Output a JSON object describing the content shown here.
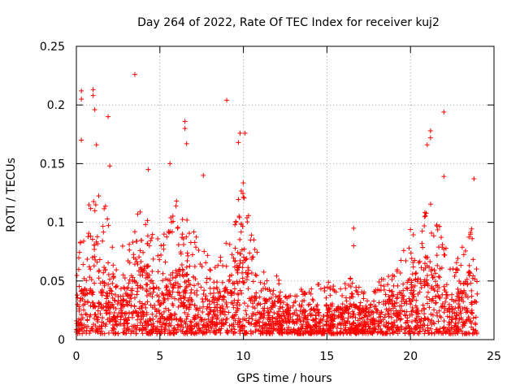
{
  "chart_data": {
    "type": "scatter",
    "title": "Day 264 of 2022, Rate Of TEC Index for receiver kuj2",
    "xlabel": "GPS time / hours",
    "ylabel": "ROTI / TECUs",
    "xlim": [
      0,
      25
    ],
    "ylim": [
      0,
      0.25
    ],
    "x_ticks": [
      "0",
      "5",
      "10",
      "15",
      "20",
      "25"
    ],
    "y_ticks": [
      "0",
      "0.05",
      "0.1",
      "0.15",
      "0.2",
      "0.25"
    ],
    "grid": true,
    "marker": "+",
    "series_color": "#ff0000",
    "x_range_data": [
      0,
      24
    ],
    "envelope": {
      "hours": [
        0,
        0.5,
        1,
        1.5,
        2,
        2.5,
        3,
        3.5,
        4,
        4.5,
        5,
        5.5,
        6,
        6.5,
        7,
        7.5,
        8,
        8.5,
        9,
        9.5,
        10,
        10.5,
        11,
        11.5,
        12,
        12.5,
        13,
        13.5,
        14,
        14.5,
        15,
        15.5,
        16,
        16.5,
        17,
        17.5,
        18,
        18.5,
        19,
        19.5,
        20,
        20.5,
        21,
        21.5,
        22,
        22.5,
        23,
        23.5,
        24
      ],
      "typical_max": [
        0.06,
        0.1,
        0.13,
        0.12,
        0.1,
        0.07,
        0.08,
        0.1,
        0.11,
        0.09,
        0.08,
        0.09,
        0.12,
        0.1,
        0.09,
        0.08,
        0.07,
        0.06,
        0.08,
        0.12,
        0.14,
        0.09,
        0.06,
        0.05,
        0.05,
        0.04,
        0.035,
        0.04,
        0.04,
        0.045,
        0.045,
        0.045,
        0.045,
        0.05,
        0.04,
        0.04,
        0.045,
        0.05,
        0.055,
        0.07,
        0.09,
        0.1,
        0.12,
        0.1,
        0.09,
        0.06,
        0.07,
        0.1,
        0.07
      ]
    },
    "notable_points": [
      {
        "x": 0.3,
        "y": 0.212
      },
      {
        "x": 0.3,
        "y": 0.205
      },
      {
        "x": 1.0,
        "y": 0.213
      },
      {
        "x": 1.0,
        "y": 0.208
      },
      {
        "x": 1.1,
        "y": 0.196
      },
      {
        "x": 1.9,
        "y": 0.19
      },
      {
        "x": 3.5,
        "y": 0.226
      },
      {
        "x": 9.0,
        "y": 0.204
      },
      {
        "x": 6.5,
        "y": 0.186
      },
      {
        "x": 6.5,
        "y": 0.18
      },
      {
        "x": 6.6,
        "y": 0.167
      },
      {
        "x": 9.8,
        "y": 0.176
      },
      {
        "x": 10.1,
        "y": 0.176
      },
      {
        "x": 21.2,
        "y": 0.178
      },
      {
        "x": 21.2,
        "y": 0.172
      },
      {
        "x": 22.0,
        "y": 0.194
      },
      {
        "x": 0.3,
        "y": 0.17
      },
      {
        "x": 1.2,
        "y": 0.166
      },
      {
        "x": 9.7,
        "y": 0.168
      },
      {
        "x": 21.0,
        "y": 0.166
      },
      {
        "x": 16.6,
        "y": 0.095
      },
      {
        "x": 16.6,
        "y": 0.08
      },
      {
        "x": 23.8,
        "y": 0.137
      },
      {
        "x": 22.0,
        "y": 0.139
      },
      {
        "x": 4.3,
        "y": 0.145
      },
      {
        "x": 5.6,
        "y": 0.15
      },
      {
        "x": 7.6,
        "y": 0.14
      },
      {
        "x": 2.0,
        "y": 0.148
      }
    ]
  }
}
